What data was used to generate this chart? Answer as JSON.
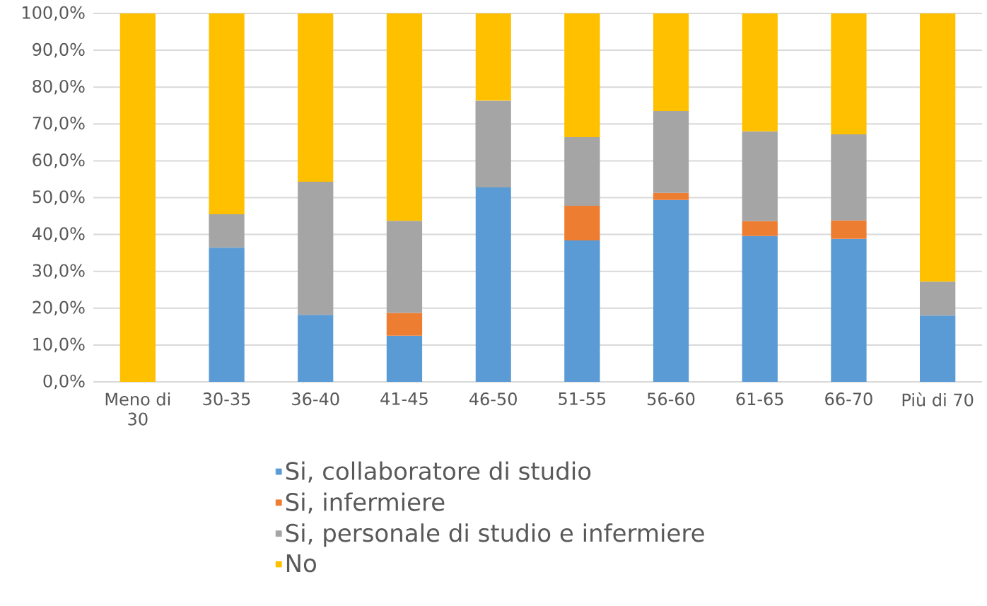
{
  "chart_data": {
    "type": "bar",
    "stacked": true,
    "categories": [
      "Meno di 30",
      "30-35",
      "36-40",
      "41-45",
      "46-50",
      "51-55",
      "56-60",
      "61-65",
      "66-70",
      "Più di 70"
    ],
    "series": [
      {
        "name": "Si, collaboratore di studio",
        "color": "#5b9bd5",
        "values": [
          0,
          36.4,
          18.2,
          12.5,
          52.8,
          38.4,
          49.4,
          39.6,
          38.8,
          18.0
        ]
      },
      {
        "name": "Si, infermiere",
        "color": "#ed7d31",
        "values": [
          0,
          0,
          0,
          6.2,
          0,
          9.4,
          1.9,
          4.0,
          5.0,
          0
        ]
      },
      {
        "name": "Si, personale di studio e infermiere",
        "color": "#a5a5a5",
        "values": [
          0,
          9.1,
          36.1,
          25.0,
          23.5,
          18.6,
          22.2,
          24.4,
          23.4,
          9.2
        ]
      },
      {
        "name": "No",
        "color": "#ffc000",
        "values": [
          100,
          54.5,
          45.7,
          56.3,
          23.7,
          33.6,
          26.5,
          32.0,
          32.8,
          72.8
        ]
      }
    ],
    "ylim": [
      0,
      100
    ],
    "yticks": [
      {
        "value": 0,
        "label": "0,0%"
      },
      {
        "value": 10,
        "label": "10,0%"
      },
      {
        "value": 20,
        "label": "20,0%"
      },
      {
        "value": 30,
        "label": "30,0%"
      },
      {
        "value": 40,
        "label": "40,0%"
      },
      {
        "value": 50,
        "label": "50,0%"
      },
      {
        "value": 60,
        "label": "60,0%"
      },
      {
        "value": 70,
        "label": "70,0%"
      },
      {
        "value": 80,
        "label": "80,0%"
      },
      {
        "value": 90,
        "label": "90,0%"
      },
      {
        "value": 100,
        "label": "100,0%"
      }
    ],
    "grid": "y",
    "legend": "bottom"
  }
}
